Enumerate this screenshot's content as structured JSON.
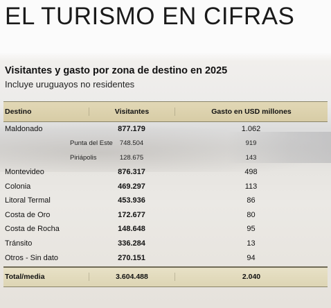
{
  "page_title": "EL TURISMO EN CIFRAS",
  "table_title": "Visitantes y gasto por zona de destino en 2025",
  "table_subtitle": "Incluye uruguayos no residentes",
  "columns": {
    "destino": "Destino",
    "visitantes": "Visitantes",
    "gasto": "Gasto en USD millones"
  },
  "rows": [
    {
      "destino": "Maldonado",
      "visitantes": "877.179",
      "gasto": "1.062"
    },
    {
      "destino": "Punta del Este",
      "visitantes": "748.504",
      "gasto": "919"
    },
    {
      "destino": "Piriápolis",
      "visitantes": "128.675",
      "gasto": "143"
    },
    {
      "destino": "Montevideo",
      "visitantes": "876.317",
      "gasto": "498"
    },
    {
      "destino": "Colonia",
      "visitantes": "469.297",
      "gasto": "113"
    },
    {
      "destino": "Litoral Termal",
      "visitantes": "453.936",
      "gasto": "86"
    },
    {
      "destino": "Costa de Oro",
      "visitantes": "172.677",
      "gasto": "80"
    },
    {
      "destino": "Costa de Rocha",
      "visitantes": "148.648",
      "gasto": "95"
    },
    {
      "destino": "Tránsito",
      "visitantes": "336.284",
      "gasto": "13"
    },
    {
      "destino": "Otros - Sin dato",
      "visitantes": "270.151",
      "gasto": "94"
    }
  ],
  "total": {
    "destino": "Total/media",
    "visitantes": "3.604.488",
    "gasto": "2.040"
  }
}
